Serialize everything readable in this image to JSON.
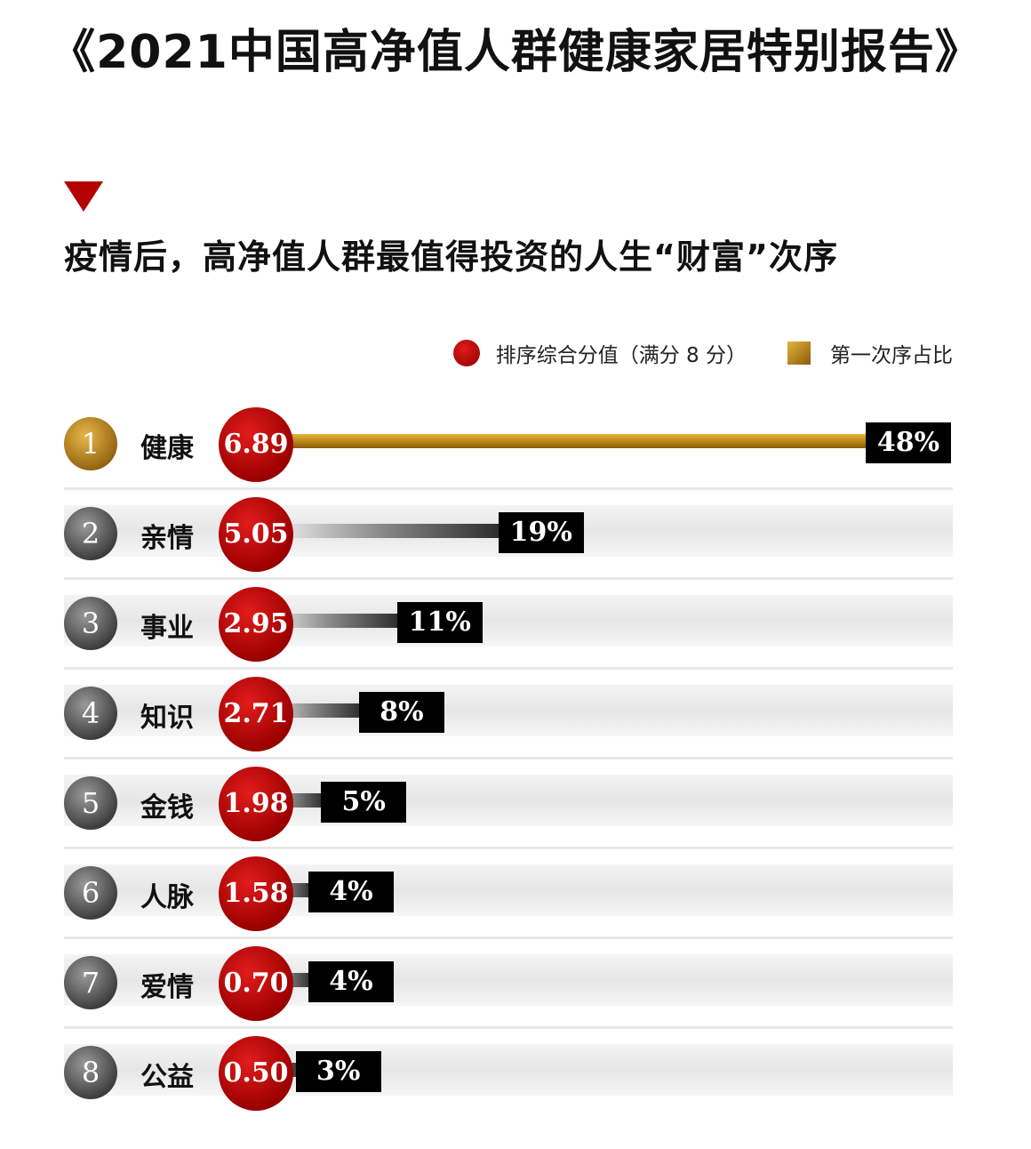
{
  "header": {
    "title": "《2021中国高净值人群健康家居特别报告》",
    "subtitle": "疫情后，高净值人群最值得投资的人生“财富”次序"
  },
  "legend": {
    "score_label": "排序综合分值（满分 8 分）",
    "share_label": "第一次序占比"
  },
  "colors": {
    "accent_red": "#b30000",
    "gold": "#b47f14",
    "gray": "#555555",
    "label_bg": "#000000"
  },
  "chart_data": {
    "type": "bar",
    "title": "疫情后，高净值人群最值得投资的人生“财富”次序",
    "categories": [
      "健康",
      "亲情",
      "事业",
      "知识",
      "金钱",
      "人脉",
      "爱情",
      "公益"
    ],
    "ranks": [
      "1",
      "2",
      "3",
      "4",
      "5",
      "6",
      "7",
      "8"
    ],
    "series": [
      {
        "name": "排序综合分值（满分 8 分）",
        "values": [
          6.89,
          5.05,
          2.95,
          2.71,
          1.98,
          1.58,
          0.7,
          0.5
        ],
        "display": [
          "6.89",
          "5.05",
          "2.95",
          "2.71",
          "1.98",
          "1.58",
          "0.70",
          "0.50"
        ]
      },
      {
        "name": "第一次序占比",
        "values": [
          48,
          19,
          11,
          8,
          5,
          4,
          4,
          3
        ],
        "display": [
          "48%",
          "19%",
          "11%",
          "8%",
          "5%",
          "4%",
          "4%",
          "3%"
        ]
      }
    ],
    "ylim": [
      0,
      48
    ],
    "legend_position": "top-right",
    "grid": false
  }
}
